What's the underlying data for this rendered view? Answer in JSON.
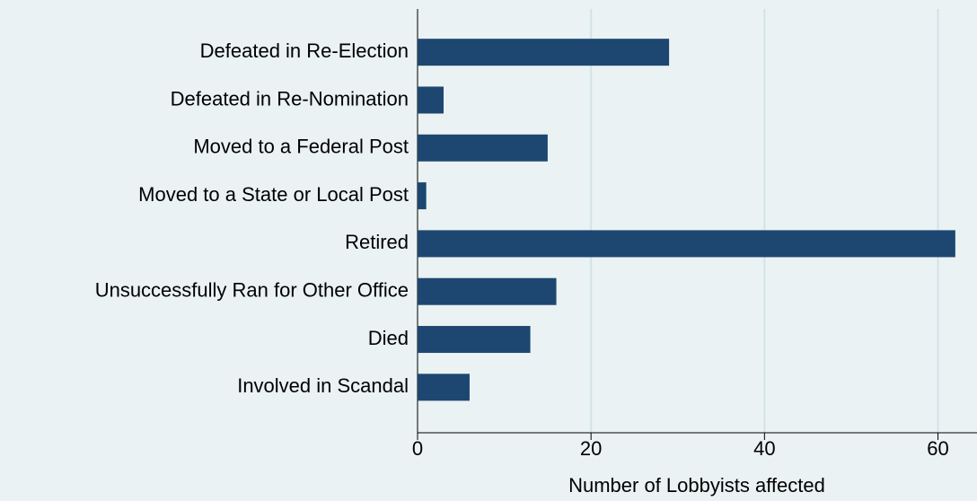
{
  "chart_data": {
    "type": "bar",
    "orientation": "horizontal",
    "x_label": "Number of Lobbyists affected",
    "categories": [
      "Defeated in Re-Election",
      "Defeated in Re-Nomination",
      "Moved to a Federal Post",
      "Moved to a State or Local Post",
      "Retired",
      "Unsuccessfully Ran for Other Office",
      "Died",
      "Involved in Scandal"
    ],
    "values": [
      29,
      3,
      15,
      1,
      62,
      16,
      13,
      6
    ],
    "color": "#1d4770",
    "xlim": [
      0,
      64.5
    ],
    "xticks": [
      0,
      20,
      40,
      60
    ],
    "grid": true
  }
}
